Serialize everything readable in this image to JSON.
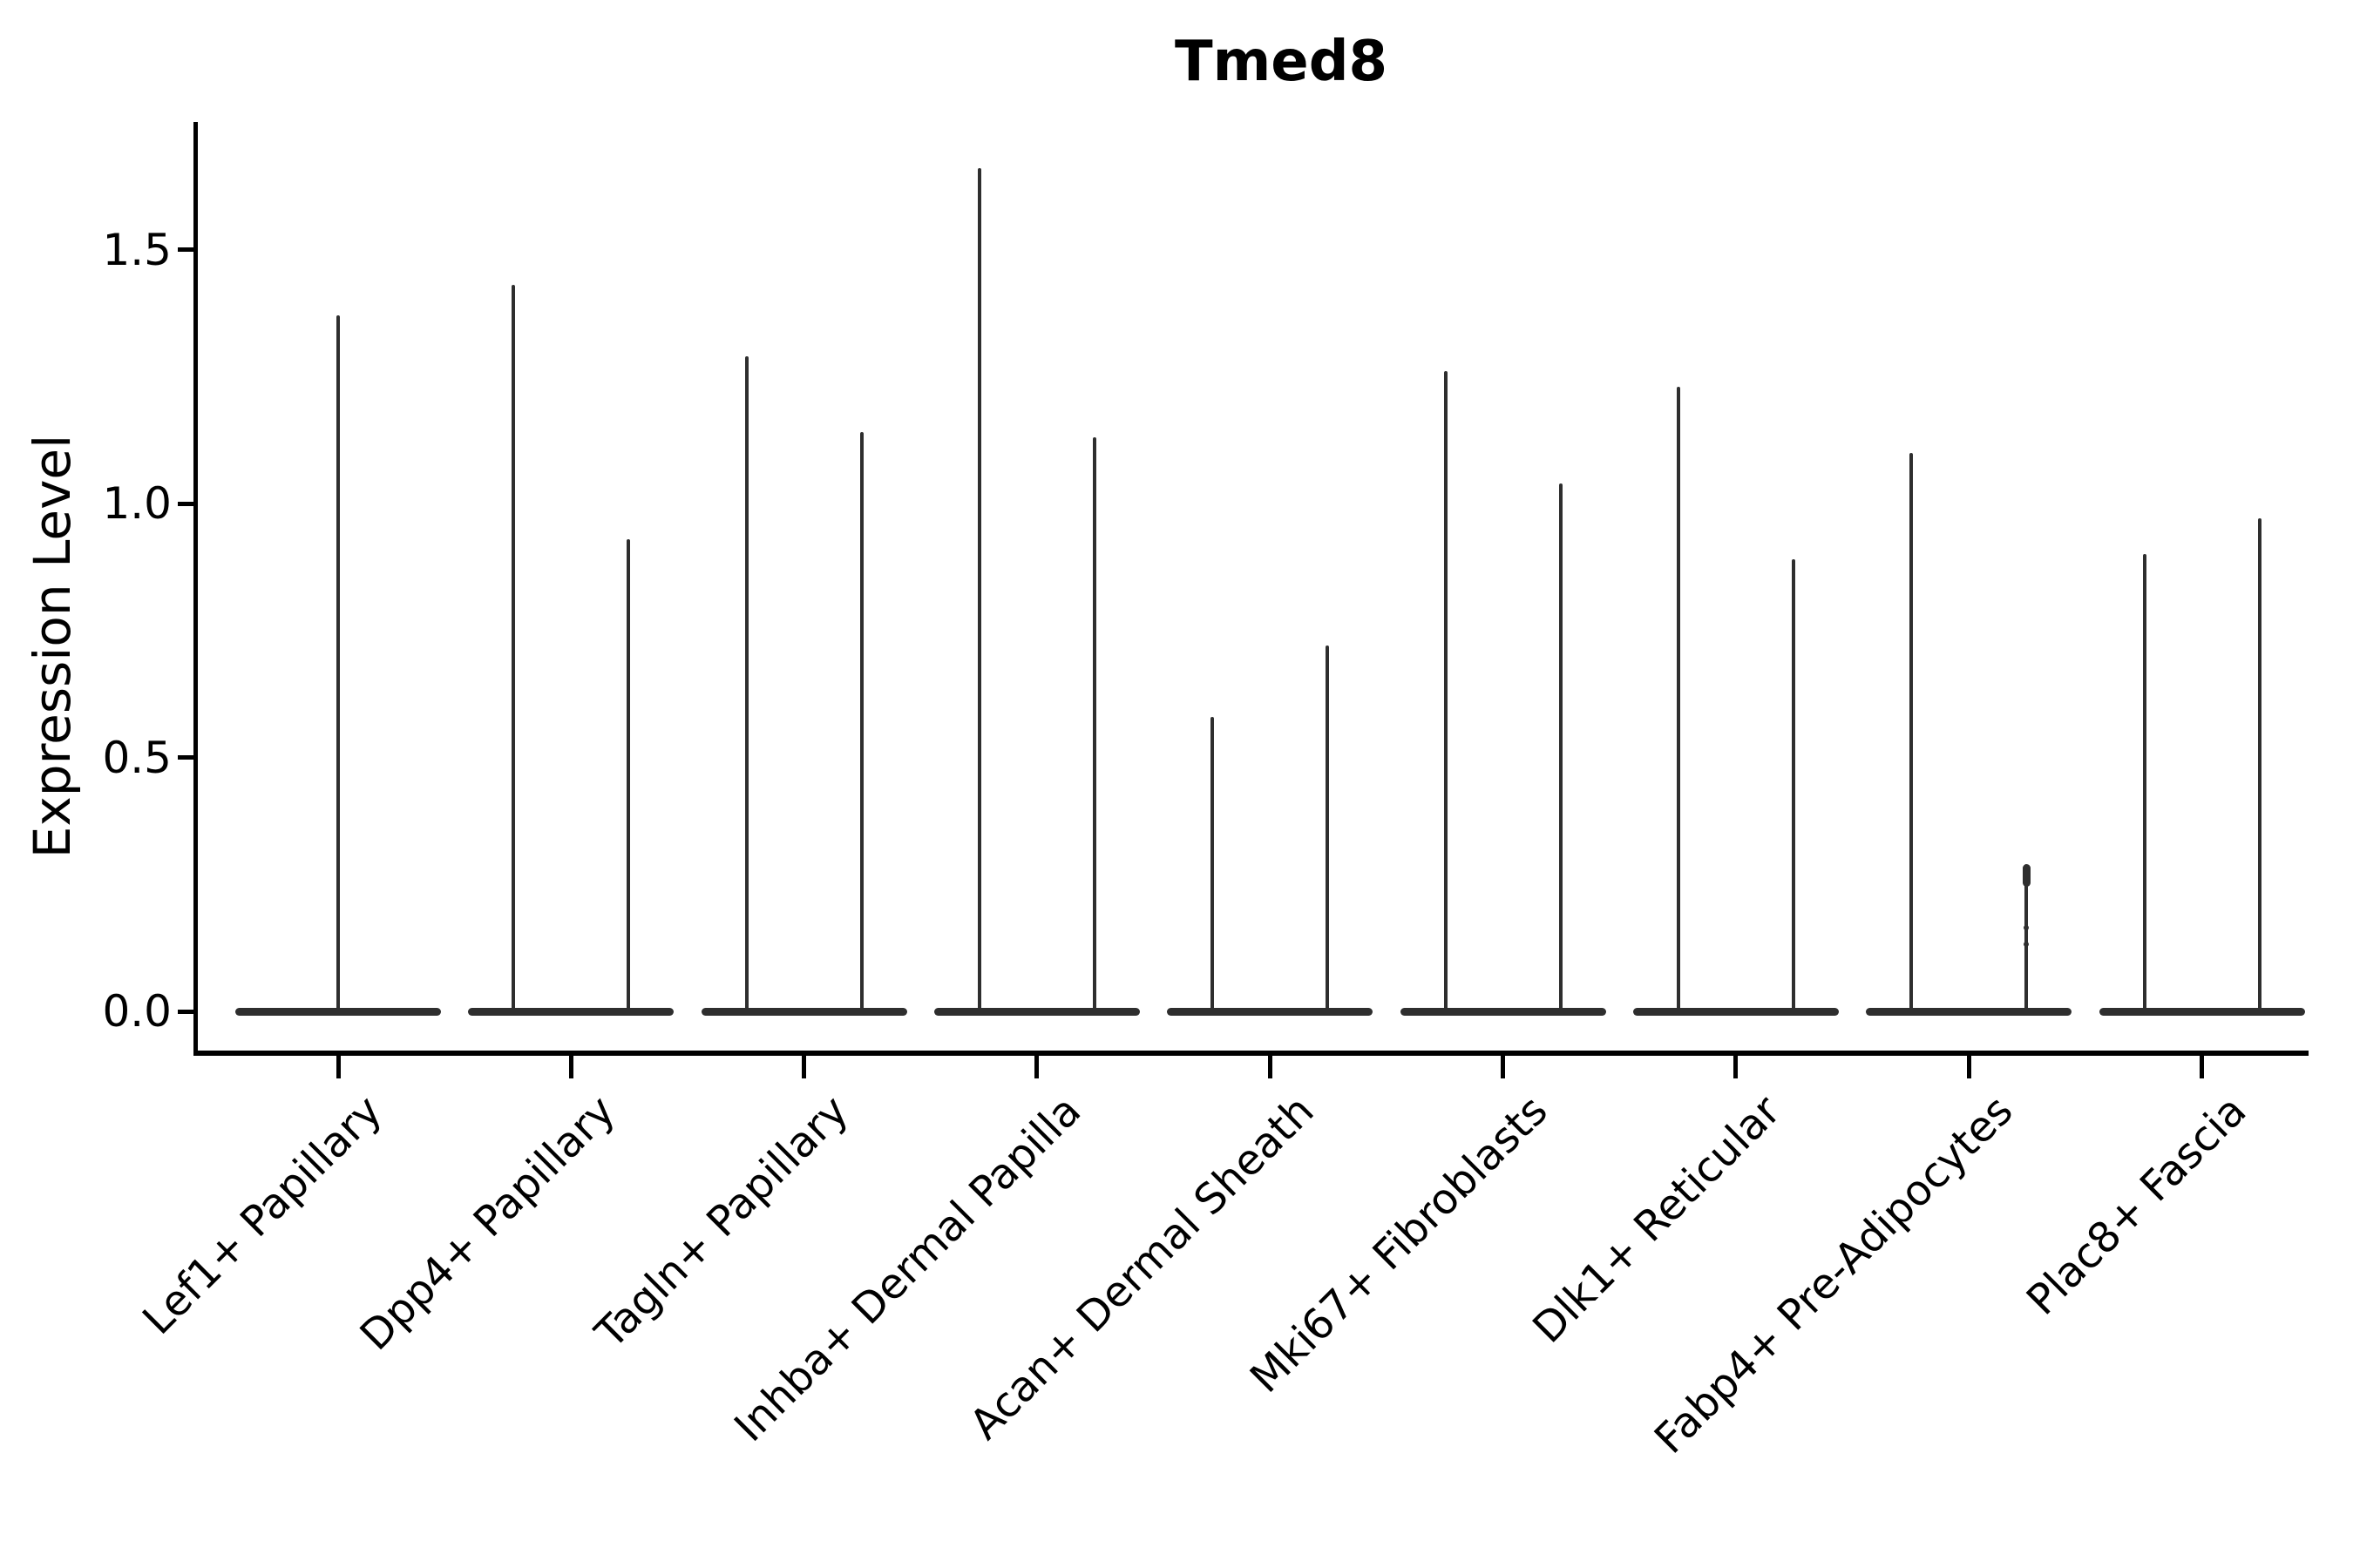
{
  "figure": {
    "title": "Tmed8",
    "y_axis_label": "Expression Level"
  },
  "colors": {
    "violin": "#2e2e2e",
    "axis": "#000000",
    "text": "#000000",
    "background": "#ffffff"
  },
  "chart_data": {
    "type": "violin",
    "title": "Tmed8",
    "xlabel": "",
    "ylabel": "Expression Level",
    "ylim": [
      -0.08,
      1.75
    ],
    "yticks": [
      0.0,
      0.5,
      1.0,
      1.5
    ],
    "ytick_labels": [
      "0.0",
      "0.5",
      "1.0",
      "1.5"
    ],
    "grid": false,
    "legend_position": "none",
    "description": "Seurat/ggplot-style violin plot of Tmed8 expression; most cells at 0 giving wide flat bases with hair-thin spikes up to the maximum expressing cell; two dodged violins per cluster except the first which shows a single centered violin.",
    "categories": [
      "Lef1+ Papillary",
      "Dpp4+ Papillary",
      "Tagln+ Papillary",
      "Inhba+ Dermal Papilla",
      "Acan+ Dermal Sheath",
      "Mki67+ Fibroblasts",
      "Dlk1+ Reticular",
      "Fabp4+ Pre-Adipocytes",
      "Plac8+ Fascia"
    ],
    "series": [
      {
        "category": "Lef1+ Papillary",
        "violins": [
          {
            "group": "single",
            "max": 1.37
          }
        ]
      },
      {
        "category": "Dpp4+ Papillary",
        "violins": [
          {
            "group": "left",
            "max": 1.43
          },
          {
            "group": "right",
            "max": 0.93
          }
        ]
      },
      {
        "category": "Tagln+ Papillary",
        "violins": [
          {
            "group": "left",
            "max": 1.29
          },
          {
            "group": "right",
            "max": 1.14
          }
        ]
      },
      {
        "category": "Inhba+ Dermal Papilla",
        "violins": [
          {
            "group": "left",
            "max": 1.66
          },
          {
            "group": "right",
            "max": 1.13
          }
        ]
      },
      {
        "category": "Acan+ Dermal Sheath",
        "violins": [
          {
            "group": "left",
            "max": 0.58
          },
          {
            "group": "right",
            "max": 0.72
          }
        ]
      },
      {
        "category": "Mki67+ Fibroblasts",
        "violins": [
          {
            "group": "left",
            "max": 1.26
          },
          {
            "group": "right",
            "max": 1.04
          }
        ]
      },
      {
        "category": "Dlk1+ Reticular",
        "violins": [
          {
            "group": "left",
            "max": 1.23
          },
          {
            "group": "right",
            "max": 0.89
          }
        ]
      },
      {
        "category": "Fabp4+ Pre-Adipocytes",
        "violins": [
          {
            "group": "left",
            "max": 1.1
          },
          {
            "group": "right",
            "max": 0.29,
            "knob": true,
            "dots": [
              0.165,
              0.132
            ]
          }
        ]
      },
      {
        "category": "Plac8+ Fascia",
        "violins": [
          {
            "group": "left",
            "max": 0.9
          },
          {
            "group": "right",
            "max": 0.97
          }
        ]
      }
    ]
  }
}
